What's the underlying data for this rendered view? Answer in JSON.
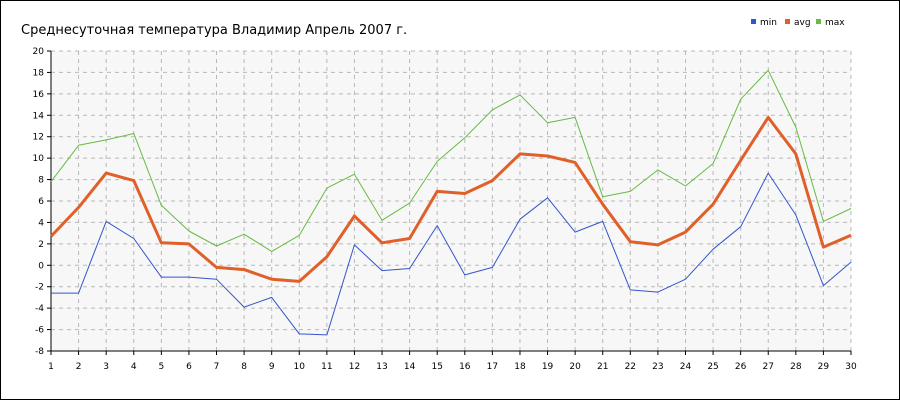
{
  "chart_data": {
    "type": "line",
    "title": "Среднесуточная температура Владимир  Апрель 2007 г.",
    "xlabel": "",
    "ylabel": "",
    "x": [
      1,
      2,
      3,
      4,
      5,
      6,
      7,
      8,
      9,
      10,
      11,
      12,
      13,
      14,
      15,
      16,
      17,
      18,
      19,
      20,
      21,
      22,
      23,
      24,
      25,
      26,
      27,
      28,
      29,
      30
    ],
    "xlim": [
      1,
      30
    ],
    "ylim": [
      -8,
      20
    ],
    "yticks": [
      -8,
      -6,
      -4,
      -2,
      0,
      2,
      4,
      6,
      8,
      10,
      12,
      14,
      16,
      18,
      20
    ],
    "grid": true,
    "legend_position": "top-right",
    "series": [
      {
        "name": "min",
        "color": "#3355cc",
        "values": [
          -2.6,
          -2.6,
          4.1,
          2.5,
          -1.1,
          -1.1,
          -1.3,
          -3.9,
          -3.0,
          -6.4,
          -6.5,
          1.9,
          -0.5,
          -0.3,
          3.7,
          -0.9,
          -0.2,
          4.3,
          6.3,
          3.1,
          4.1,
          -2.3,
          -2.5,
          -1.3,
          1.5,
          3.6,
          8.6,
          4.7,
          -1.9,
          0.3
        ]
      },
      {
        "name": "avg",
        "color": "#e0602a",
        "values": [
          2.7,
          5.4,
          8.6,
          7.9,
          2.1,
          2.0,
          -0.2,
          -0.4,
          -1.3,
          -1.5,
          0.8,
          4.6,
          2.1,
          2.5,
          6.9,
          6.7,
          7.9,
          10.4,
          10.2,
          9.6,
          5.7,
          2.2,
          1.9,
          3.1,
          5.7,
          9.8,
          13.8,
          10.4,
          1.7,
          2.8
        ]
      },
      {
        "name": "max",
        "color": "#66bb44",
        "values": [
          7.8,
          11.2,
          11.7,
          12.3,
          5.6,
          3.2,
          1.8,
          2.9,
          1.3,
          2.8,
          7.2,
          8.5,
          4.2,
          5.8,
          9.7,
          11.9,
          14.5,
          15.9,
          13.3,
          13.8,
          6.4,
          6.9,
          8.9,
          7.4,
          9.5,
          15.5,
          18.2,
          12.9,
          4.1,
          5.3
        ]
      }
    ]
  }
}
